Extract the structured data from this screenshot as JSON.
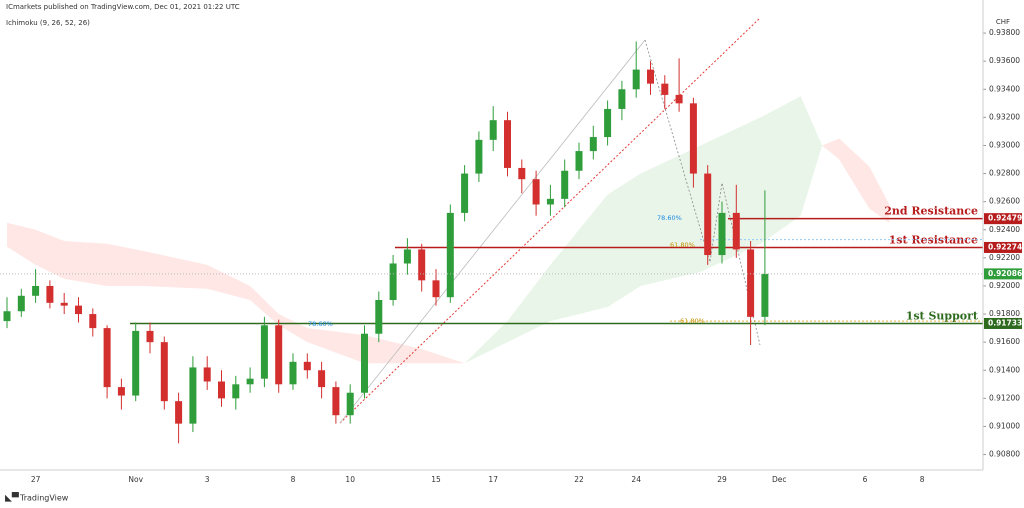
{
  "header": "ICmarkets published on TradingView.com, Dec 01, 2021 01:22 UTC",
  "indicator": "Ichimoku (9, 26, 52, 26)",
  "currency": "CHF",
  "brand": "TradingView",
  "chart_data": {
    "type": "candlestick",
    "categories": [
      null,
      null,
      "27",
      null,
      null,
      null,
      null,
      null,
      null,
      "Nov",
      null,
      null,
      null,
      null,
      "3",
      null,
      null,
      null,
      null,
      null,
      "8",
      null,
      null,
      null,
      "10",
      null,
      null,
      null,
      null,
      null,
      "15",
      null,
      null,
      null,
      "17",
      null,
      null,
      null,
      null,
      null,
      "22",
      null,
      null,
      null,
      "24",
      null,
      null,
      null,
      null,
      null,
      "29",
      null,
      null,
      null,
      "Dec",
      null,
      null,
      null,
      null,
      null,
      "6",
      null,
      null,
      null,
      "8",
      null,
      null,
      null
    ],
    "open": [
      0.9175,
      0.9182,
      0.9193,
      0.92,
      0.9188,
      0.9186,
      0.918,
      0.917,
      0.9128,
      0.9122,
      0.9168,
      0.916,
      0.9118,
      0.9102,
      0.9142,
      0.9132,
      0.912,
      0.913,
      0.9134,
      0.9172,
      0.913,
      0.9146,
      0.914,
      0.9128,
      0.9108,
      0.9124,
      0.9166,
      0.919,
      0.9216,
      0.9226,
      0.9204,
      0.9192,
      0.9252,
      0.928,
      0.9304,
      0.9318,
      0.9284,
      0.9276,
      0.9258,
      0.9262,
      0.9282,
      0.9296,
      0.9306,
      0.9326,
      0.934,
      0.9354,
      0.9344,
      0.9336,
      0.933,
      0.928,
      0.9222,
      0.9252,
      0.9226,
      0.9178,
      null,
      null,
      null,
      null,
      null,
      null,
      null,
      null,
      null,
      null,
      null,
      null,
      null,
      null
    ],
    "high": [
      0.9192,
      0.9198,
      0.9212,
      0.9204,
      0.9195,
      0.9192,
      0.9184,
      0.9172,
      0.9134,
      0.9174,
      0.9174,
      0.9164,
      0.9124,
      0.915,
      0.915,
      0.914,
      0.9136,
      0.9142,
      0.9178,
      0.9176,
      0.9152,
      0.9152,
      0.9146,
      0.9132,
      0.913,
      0.9172,
      0.9196,
      0.9222,
      0.9234,
      0.923,
      0.9212,
      0.9258,
      0.9286,
      0.931,
      0.9328,
      0.9324,
      0.929,
      0.9282,
      0.9272,
      0.929,
      0.9302,
      0.9314,
      0.9332,
      0.9346,
      0.9374,
      0.936,
      0.935,
      0.9362,
      0.9334,
      0.9286,
      0.926,
      0.9272,
      0.9232,
      0.9268,
      null,
      null,
      null,
      null,
      null,
      null,
      null,
      null,
      null,
      null,
      null,
      null,
      null,
      null
    ],
    "low": [
      0.917,
      0.9178,
      0.9188,
      0.9184,
      0.918,
      0.9174,
      0.9164,
      0.912,
      0.9112,
      0.9118,
      0.9152,
      0.9112,
      0.9088,
      0.9096,
      0.9126,
      0.9114,
      0.9112,
      0.9124,
      0.9128,
      0.9124,
      0.9126,
      0.9134,
      0.912,
      0.9102,
      0.9102,
      0.912,
      0.916,
      0.9186,
      0.9208,
      0.9196,
      0.9186,
      0.9188,
      0.9246,
      0.9274,
      0.9296,
      0.9278,
      0.9266,
      0.925,
      0.925,
      0.9256,
      0.9276,
      0.929,
      0.93,
      0.9318,
      0.9334,
      0.9336,
      0.9326,
      0.9324,
      0.927,
      0.9215,
      0.9216,
      0.922,
      0.9158,
      0.9172,
      null,
      null,
      null,
      null,
      null,
      null,
      null,
      null,
      null,
      null,
      null,
      null,
      null,
      null
    ],
    "close": [
      0.9182,
      0.9193,
      0.92,
      0.9188,
      0.9186,
      0.918,
      0.917,
      0.9128,
      0.9122,
      0.9168,
      0.916,
      0.9118,
      0.9102,
      0.9142,
      0.9132,
      0.912,
      0.913,
      0.9134,
      0.9172,
      0.913,
      0.9146,
      0.914,
      0.9128,
      0.9108,
      0.9124,
      0.9166,
      0.919,
      0.9216,
      0.9226,
      0.9204,
      0.9192,
      0.9252,
      0.928,
      0.9304,
      0.9318,
      0.9284,
      0.9276,
      0.9258,
      0.9262,
      0.9282,
      0.9296,
      0.9306,
      0.9326,
      0.934,
      0.9354,
      0.9344,
      0.9336,
      0.933,
      0.928,
      0.9222,
      0.9252,
      0.9226,
      0.9178,
      0.92086,
      null,
      null,
      null,
      null,
      null,
      null,
      null,
      null,
      null,
      null,
      null,
      null,
      null,
      null
    ],
    "up_color": "#2e9d3a",
    "down_color": "#d32f2f",
    "ylim": [
      0.9069,
      0.9395
    ],
    "yticks": [
      {
        "value": 0.908,
        "label": "0.90800"
      },
      {
        "value": 0.91,
        "label": "0.91000"
      },
      {
        "value": 0.912,
        "label": "0.91200"
      },
      {
        "value": 0.914,
        "label": "0.91400"
      },
      {
        "value": 0.916,
        "label": "0.91600"
      },
      {
        "value": 0.918,
        "label": "0.91800"
      },
      {
        "value": 0.92,
        "label": "0.92000"
      },
      {
        "value": 0.922,
        "label": "0.92200"
      },
      {
        "value": 0.924,
        "label": "0.92400"
      },
      {
        "value": 0.926,
        "label": "0.92600"
      },
      {
        "value": 0.928,
        "label": "0.92800"
      },
      {
        "value": 0.93,
        "label": "0.93000"
      },
      {
        "value": 0.932,
        "label": "0.93200"
      },
      {
        "value": 0.934,
        "label": "0.93400"
      },
      {
        "value": 0.936,
        "label": "0.93600"
      },
      {
        "value": 0.938,
        "label": "0.93800"
      }
    ],
    "grid": false,
    "cloud": {
      "x": [
        0,
        2,
        4,
        7,
        9.5,
        14,
        17,
        19,
        21,
        25,
        29,
        32,
        35,
        38,
        42,
        44.3,
        48.5,
        52.7,
        55.5,
        57,
        58.2,
        60.3,
        61.7
      ],
      "span_a": [
        0.9228,
        0.9215,
        0.9205,
        0.92,
        0.92,
        0.9198,
        0.919,
        0.9172,
        0.916,
        0.9145,
        0.9145,
        0.9145,
        0.9175,
        0.9215,
        0.9265,
        0.928,
        0.93,
        0.932,
        0.9335,
        0.93,
        0.929,
        0.9255,
        0.9245
      ],
      "span_b": [
        0.9245,
        0.924,
        0.9232,
        0.923,
        0.9225,
        0.9215,
        0.92,
        0.918,
        0.917,
        0.9165,
        0.9155,
        0.9145,
        0.916,
        0.9175,
        0.9185,
        0.92,
        0.921,
        0.923,
        0.925,
        0.93,
        0.9305,
        0.9285,
        0.9258
      ],
      "bull_color": "rgba(76,175,80,0.13)",
      "bear_color": "rgba(244,67,54,0.13)"
    },
    "levels": [
      {
        "name": "2nd Resistance",
        "value": 0.92479,
        "color": "#b71c1c"
      },
      {
        "name": "1st Resistance",
        "value": 0.92274,
        "color": "#b71c1c"
      },
      {
        "name": "1st Support",
        "value": 0.91733,
        "color": "#2e6b1f"
      }
    ],
    "last": {
      "value": 0.92086,
      "color": "#2e9d3a"
    },
    "annotations": [
      "78.60%",
      "61.80%",
      "61.80%",
      "78.60%"
    ]
  }
}
